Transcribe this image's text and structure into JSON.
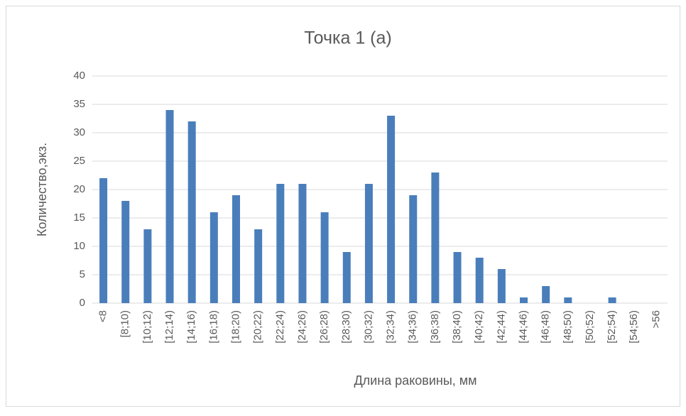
{
  "chart_data": {
    "type": "bar",
    "title": "Точка 1 (а)",
    "x_label": "Длина раковины, мм",
    "y_label": "Количество,экз.",
    "categories": [
      "<8",
      "[8;10)",
      "[10;12)",
      "[12;14)",
      "[14;16)",
      "[16;18)",
      "[18;20)",
      "[20;22)",
      "[22;24)",
      "[24;26)",
      "[26;28)",
      "[28;30)",
      "[30;32)",
      "[32;34)",
      "[34;36)",
      "[36;38)",
      "[38;40)",
      "[40;42)",
      "[42;44)",
      "[44;46)",
      "[46;48)",
      "[48;50)",
      "[50;52)",
      "[52;54)",
      "[54;56)",
      ">56"
    ],
    "values": [
      22,
      18,
      13,
      34,
      32,
      16,
      19,
      13,
      21,
      21,
      16,
      9,
      21,
      33,
      19,
      23,
      9,
      8,
      6,
      1,
      3,
      1,
      0,
      1,
      0,
      0
    ],
    "color": "#4a7ebb",
    "ylim": [
      0,
      40
    ],
    "yticks": [
      0,
      5,
      10,
      15,
      20,
      25,
      30,
      35,
      40
    ],
    "grid": true
  }
}
